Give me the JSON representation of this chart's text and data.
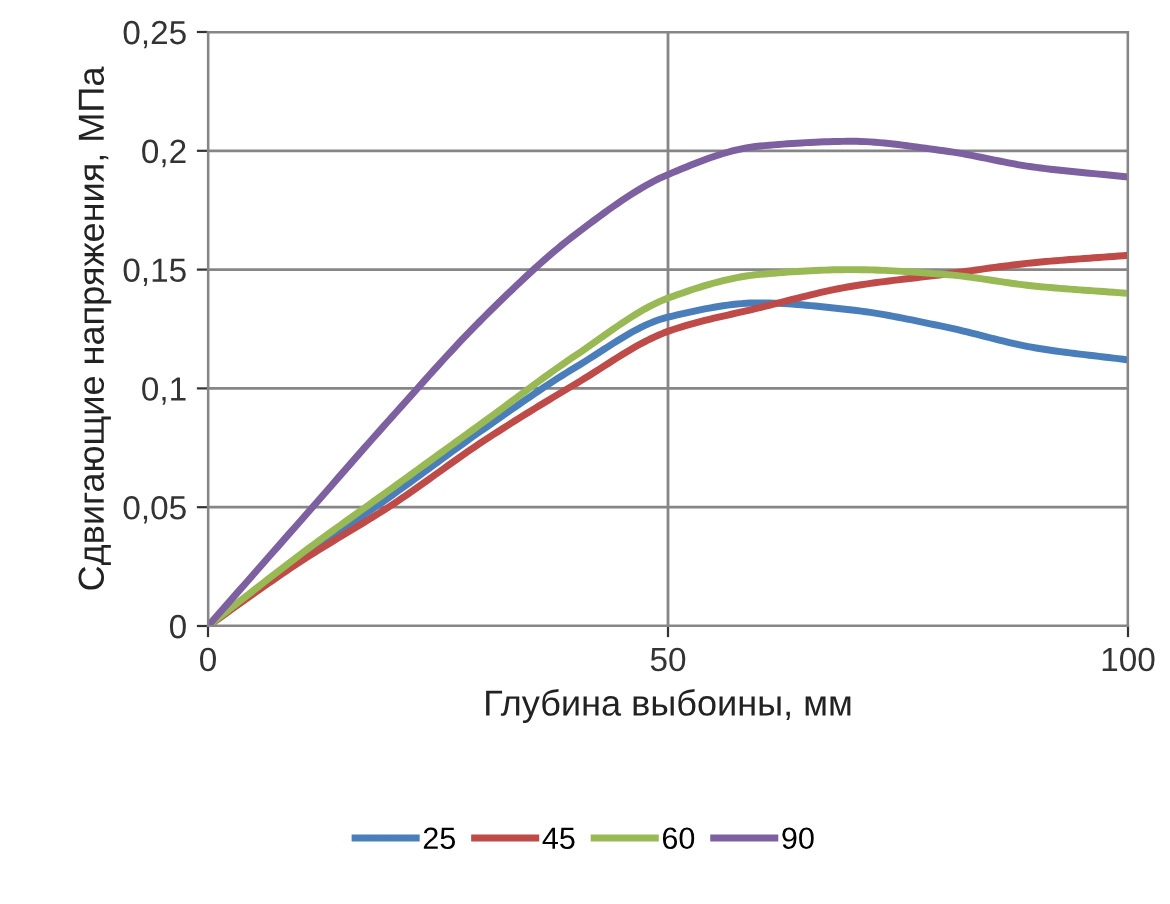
{
  "chart_data": {
    "type": "line",
    "xlabel": "Глубина выбоины, мм",
    "ylabel": "Сдвигающие напряжения, МПа",
    "x": [
      0,
      10,
      20,
      30,
      40,
      50,
      60,
      70,
      80,
      90,
      100
    ],
    "series": [
      {
        "name": "25",
        "color": "#4a7ebb",
        "values": [
          0,
          0.028,
          0.055,
          0.083,
          0.109,
          0.13,
          0.136,
          0.133,
          0.126,
          0.117,
          0.112
        ]
      },
      {
        "name": "45",
        "color": "#be4b48",
        "values": [
          0,
          0.027,
          0.051,
          0.078,
          0.102,
          0.124,
          0.134,
          0.143,
          0.148,
          0.153,
          0.156
        ]
      },
      {
        "name": "60",
        "color": "#98b954",
        "values": [
          0,
          0.03,
          0.058,
          0.086,
          0.114,
          0.138,
          0.148,
          0.15,
          0.148,
          0.143,
          0.14
        ]
      },
      {
        "name": "90",
        "color": "#7d60a0",
        "values": [
          0,
          0.044,
          0.088,
          0.13,
          0.165,
          0.19,
          0.202,
          0.204,
          0.2,
          0.193,
          0.189
        ]
      }
    ],
    "xlim": [
      0,
      100
    ],
    "xticks": [
      0,
      50,
      100
    ],
    "ylim": [
      0,
      0.25
    ],
    "yticks": [
      {
        "value": 0,
        "label": "0"
      },
      {
        "value": 0.05,
        "label": "0,05"
      },
      {
        "value": 0.1,
        "label": "0,1"
      },
      {
        "value": 0.15,
        "label": "0,15"
      },
      {
        "value": 0.2,
        "label": "0,2"
      },
      {
        "value": 0.25,
        "label": "0,25"
      }
    ],
    "grid": true,
    "legend": "bottom",
    "marker": "none",
    "line_style": "solid"
  }
}
